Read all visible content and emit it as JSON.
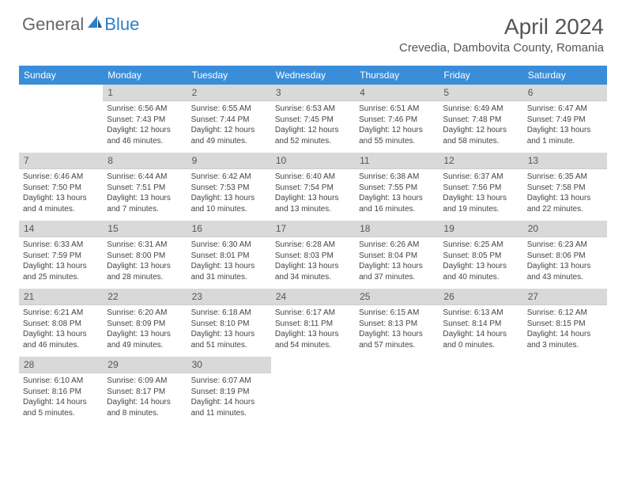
{
  "brand": {
    "part1": "General",
    "part2": "Blue"
  },
  "title": "April 2024",
  "location": "Crevedia, Dambovita County, Romania",
  "colors": {
    "header_bg": "#3a8dd8",
    "daynum_bg": "#d9d9d9",
    "brand_blue": "#2d7dc9",
    "text": "#444"
  },
  "weekdays": [
    "Sunday",
    "Monday",
    "Tuesday",
    "Wednesday",
    "Thursday",
    "Friday",
    "Saturday"
  ],
  "weeks": [
    [
      {
        "n": "",
        "lines": []
      },
      {
        "n": "1",
        "lines": [
          "Sunrise: 6:56 AM",
          "Sunset: 7:43 PM",
          "Daylight: 12 hours",
          "and 46 minutes."
        ]
      },
      {
        "n": "2",
        "lines": [
          "Sunrise: 6:55 AM",
          "Sunset: 7:44 PM",
          "Daylight: 12 hours",
          "and 49 minutes."
        ]
      },
      {
        "n": "3",
        "lines": [
          "Sunrise: 6:53 AM",
          "Sunset: 7:45 PM",
          "Daylight: 12 hours",
          "and 52 minutes."
        ]
      },
      {
        "n": "4",
        "lines": [
          "Sunrise: 6:51 AM",
          "Sunset: 7:46 PM",
          "Daylight: 12 hours",
          "and 55 minutes."
        ]
      },
      {
        "n": "5",
        "lines": [
          "Sunrise: 6:49 AM",
          "Sunset: 7:48 PM",
          "Daylight: 12 hours",
          "and 58 minutes."
        ]
      },
      {
        "n": "6",
        "lines": [
          "Sunrise: 6:47 AM",
          "Sunset: 7:49 PM",
          "Daylight: 13 hours",
          "and 1 minute."
        ]
      }
    ],
    [
      {
        "n": "7",
        "lines": [
          "Sunrise: 6:46 AM",
          "Sunset: 7:50 PM",
          "Daylight: 13 hours",
          "and 4 minutes."
        ]
      },
      {
        "n": "8",
        "lines": [
          "Sunrise: 6:44 AM",
          "Sunset: 7:51 PM",
          "Daylight: 13 hours",
          "and 7 minutes."
        ]
      },
      {
        "n": "9",
        "lines": [
          "Sunrise: 6:42 AM",
          "Sunset: 7:53 PM",
          "Daylight: 13 hours",
          "and 10 minutes."
        ]
      },
      {
        "n": "10",
        "lines": [
          "Sunrise: 6:40 AM",
          "Sunset: 7:54 PM",
          "Daylight: 13 hours",
          "and 13 minutes."
        ]
      },
      {
        "n": "11",
        "lines": [
          "Sunrise: 6:38 AM",
          "Sunset: 7:55 PM",
          "Daylight: 13 hours",
          "and 16 minutes."
        ]
      },
      {
        "n": "12",
        "lines": [
          "Sunrise: 6:37 AM",
          "Sunset: 7:56 PM",
          "Daylight: 13 hours",
          "and 19 minutes."
        ]
      },
      {
        "n": "13",
        "lines": [
          "Sunrise: 6:35 AM",
          "Sunset: 7:58 PM",
          "Daylight: 13 hours",
          "and 22 minutes."
        ]
      }
    ],
    [
      {
        "n": "14",
        "lines": [
          "Sunrise: 6:33 AM",
          "Sunset: 7:59 PM",
          "Daylight: 13 hours",
          "and 25 minutes."
        ]
      },
      {
        "n": "15",
        "lines": [
          "Sunrise: 6:31 AM",
          "Sunset: 8:00 PM",
          "Daylight: 13 hours",
          "and 28 minutes."
        ]
      },
      {
        "n": "16",
        "lines": [
          "Sunrise: 6:30 AM",
          "Sunset: 8:01 PM",
          "Daylight: 13 hours",
          "and 31 minutes."
        ]
      },
      {
        "n": "17",
        "lines": [
          "Sunrise: 6:28 AM",
          "Sunset: 8:03 PM",
          "Daylight: 13 hours",
          "and 34 minutes."
        ]
      },
      {
        "n": "18",
        "lines": [
          "Sunrise: 6:26 AM",
          "Sunset: 8:04 PM",
          "Daylight: 13 hours",
          "and 37 minutes."
        ]
      },
      {
        "n": "19",
        "lines": [
          "Sunrise: 6:25 AM",
          "Sunset: 8:05 PM",
          "Daylight: 13 hours",
          "and 40 minutes."
        ]
      },
      {
        "n": "20",
        "lines": [
          "Sunrise: 6:23 AM",
          "Sunset: 8:06 PM",
          "Daylight: 13 hours",
          "and 43 minutes."
        ]
      }
    ],
    [
      {
        "n": "21",
        "lines": [
          "Sunrise: 6:21 AM",
          "Sunset: 8:08 PM",
          "Daylight: 13 hours",
          "and 46 minutes."
        ]
      },
      {
        "n": "22",
        "lines": [
          "Sunrise: 6:20 AM",
          "Sunset: 8:09 PM",
          "Daylight: 13 hours",
          "and 49 minutes."
        ]
      },
      {
        "n": "23",
        "lines": [
          "Sunrise: 6:18 AM",
          "Sunset: 8:10 PM",
          "Daylight: 13 hours",
          "and 51 minutes."
        ]
      },
      {
        "n": "24",
        "lines": [
          "Sunrise: 6:17 AM",
          "Sunset: 8:11 PM",
          "Daylight: 13 hours",
          "and 54 minutes."
        ]
      },
      {
        "n": "25",
        "lines": [
          "Sunrise: 6:15 AM",
          "Sunset: 8:13 PM",
          "Daylight: 13 hours",
          "and 57 minutes."
        ]
      },
      {
        "n": "26",
        "lines": [
          "Sunrise: 6:13 AM",
          "Sunset: 8:14 PM",
          "Daylight: 14 hours",
          "and 0 minutes."
        ]
      },
      {
        "n": "27",
        "lines": [
          "Sunrise: 6:12 AM",
          "Sunset: 8:15 PM",
          "Daylight: 14 hours",
          "and 3 minutes."
        ]
      }
    ],
    [
      {
        "n": "28",
        "lines": [
          "Sunrise: 6:10 AM",
          "Sunset: 8:16 PM",
          "Daylight: 14 hours",
          "and 5 minutes."
        ]
      },
      {
        "n": "29",
        "lines": [
          "Sunrise: 6:09 AM",
          "Sunset: 8:17 PM",
          "Daylight: 14 hours",
          "and 8 minutes."
        ]
      },
      {
        "n": "30",
        "lines": [
          "Sunrise: 6:07 AM",
          "Sunset: 8:19 PM",
          "Daylight: 14 hours",
          "and 11 minutes."
        ]
      },
      {
        "n": "",
        "lines": []
      },
      {
        "n": "",
        "lines": []
      },
      {
        "n": "",
        "lines": []
      },
      {
        "n": "",
        "lines": []
      }
    ]
  ]
}
